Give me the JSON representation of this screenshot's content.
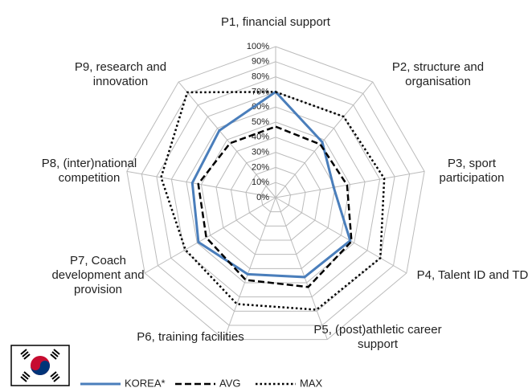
{
  "chart_data": {
    "type": "radar",
    "categories": [
      "P1, financial support",
      "P2, structure and organisation",
      "P3, sport participation",
      "P4, Talent ID and TD",
      "P5, (post)athletic career support",
      "P6, training facilities",
      "P7, Coach development and provision",
      "P8, (inter)national competition",
      "P9, research and innovation"
    ],
    "series": [
      {
        "name": "KOREA*",
        "color": "#4a7ebb",
        "style": "solid",
        "values": [
          70,
          48,
          39,
          57,
          56,
          54,
          59,
          56,
          58
        ]
      },
      {
        "name": "AVG",
        "color": "#000000",
        "style": "dashed",
        "values": [
          47,
          46,
          48,
          58,
          63,
          58,
          53,
          52,
          47
        ]
      },
      {
        "name": "MAX",
        "color": "#000000",
        "style": "dotted",
        "values": [
          70,
          70,
          73,
          80,
          79,
          75,
          69,
          77,
          91
        ]
      }
    ],
    "ylim": [
      0,
      100
    ],
    "yticks": [
      {
        "value": 0,
        "label": "0%"
      },
      {
        "value": 10,
        "label": "10%"
      },
      {
        "value": 20,
        "label": "20%"
      },
      {
        "value": 30,
        "label": "30%"
      },
      {
        "value": 40,
        "label": "40%"
      },
      {
        "value": 50,
        "label": "50%"
      },
      {
        "value": 60,
        "label": "60%"
      },
      {
        "value": 70,
        "label": "70%"
      },
      {
        "value": 80,
        "label": "80%"
      },
      {
        "value": 90,
        "label": "90%"
      },
      {
        "value": 100,
        "label": "100%"
      }
    ],
    "grid": true,
    "legend": "bottom"
  }
}
